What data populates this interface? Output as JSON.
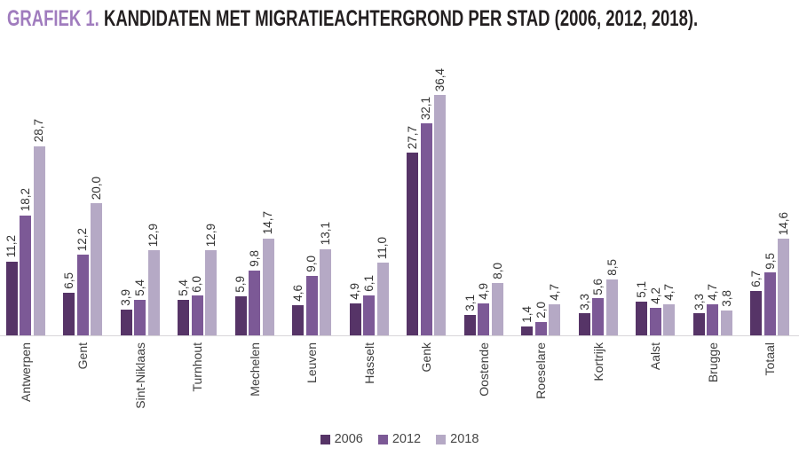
{
  "title": {
    "prefix": "GRAFIEK 1.",
    "rest": " KANDIDATEN MET MIGRATIEACHTERGROND PER STAD (2006, 2012, 2018)."
  },
  "colors": {
    "title_prefix": "#a07cbe",
    "title_text": "#231f20",
    "axis_line": "#d8d6d9",
    "value_label_text": "#333333",
    "category_label_text": "#3d3d3d",
    "legend_text": "#464646",
    "series_2006": "#563467",
    "series_2012": "#7c5996",
    "series_2018": "#b5a9c5"
  },
  "legend": [
    {
      "label": "2006",
      "color": "#563467"
    },
    {
      "label": "2012",
      "color": "#7c5996"
    },
    {
      "label": "2018",
      "color": "#b5a9c5"
    }
  ],
  "chart_data": {
    "type": "bar",
    "title": "GRAFIEK 1. KANDIDATEN MET MIGRATIEACHTERGROND PER STAD (2006, 2012, 2018).",
    "categories": [
      "Antwerpen",
      "Gent",
      "Sint-Niklaas",
      "Turnhout",
      "Mechelen",
      "Leuven",
      "Hasselt",
      "Genk",
      "Oostende",
      "Roeselare",
      "Kortrijk",
      "Aalst",
      "Brugge",
      "Totaal"
    ],
    "series": [
      {
        "name": "2006",
        "color": "#563467",
        "values": [
          11.2,
          6.5,
          3.9,
          5.4,
          5.9,
          4.6,
          4.9,
          27.7,
          3.1,
          1.4,
          3.3,
          5.1,
          3.3,
          6.7
        ],
        "labels": [
          "11,2",
          "6,5",
          "3,9",
          "5,4",
          "5,9",
          "4,6",
          "4,9",
          "27,7",
          "3,1",
          "1,4",
          "3,3",
          "5,1",
          "3,3",
          "6,7"
        ]
      },
      {
        "name": "2012",
        "color": "#7c5996",
        "values": [
          18.2,
          12.2,
          5.4,
          6.0,
          9.8,
          9.0,
          6.1,
          32.1,
          4.9,
          2.0,
          5.6,
          4.2,
          4.7,
          9.5
        ],
        "labels": [
          "18,2",
          "12,2",
          "5,4",
          "6,0",
          "9,8",
          "9,0",
          "6,1",
          "32,1",
          "4,9",
          "2,0",
          "5,6",
          "4,2",
          "4,7",
          "9,5"
        ]
      },
      {
        "name": "2018",
        "color": "#b5a9c5",
        "values": [
          28.7,
          20.0,
          12.9,
          12.9,
          14.7,
          13.1,
          11.0,
          36.4,
          8.0,
          4.7,
          8.5,
          4.7,
          3.8,
          14.6
        ],
        "labels": [
          "28,7",
          "20,0",
          "12,9",
          "12,9",
          "14,7",
          "13,1",
          "11,0",
          "36,4",
          "8,0",
          "4,7",
          "8,5",
          "4,7",
          "3,8",
          "14,6"
        ]
      }
    ],
    "ylim": [
      0,
      40
    ],
    "xlabel": "",
    "ylabel": "",
    "value_labels_shown": true,
    "label_orientation": "vertical",
    "grid": false,
    "legend_position": "bottom"
  }
}
